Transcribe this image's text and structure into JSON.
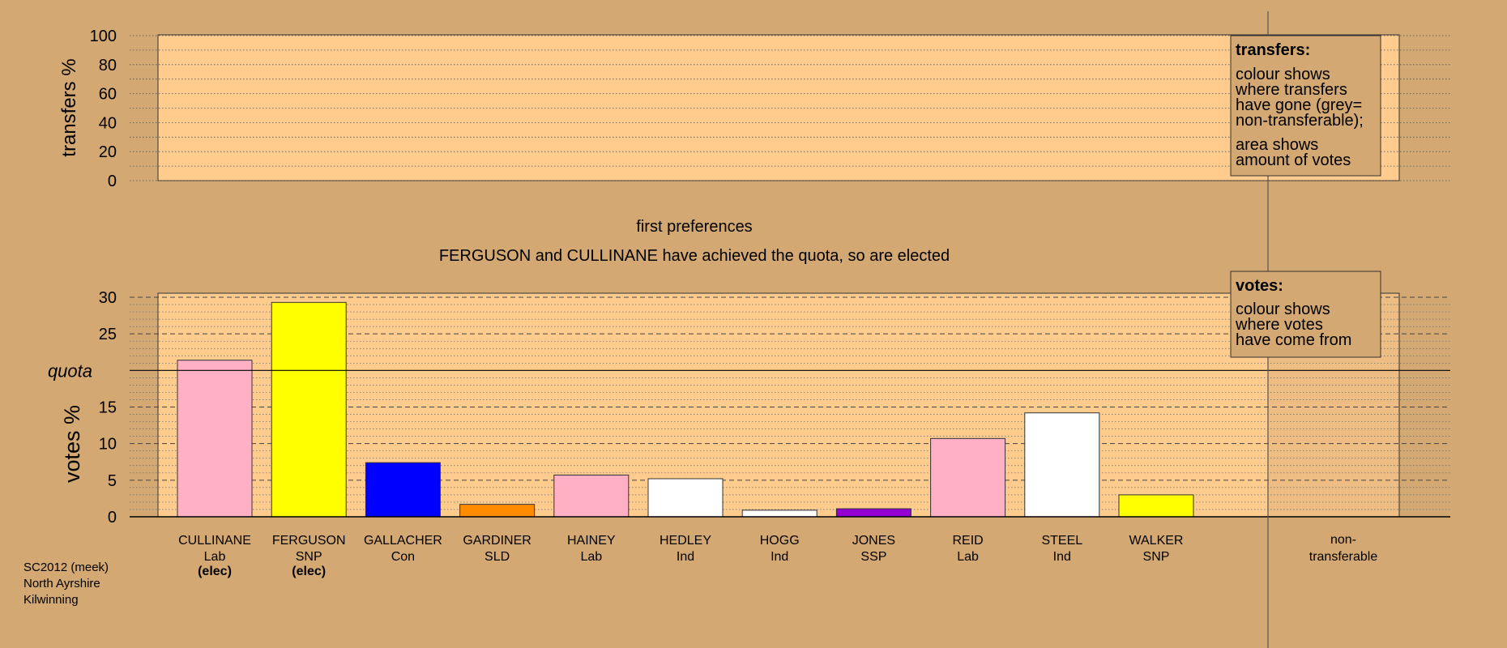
{
  "colors": {
    "background": "#d4a872",
    "plot_bg": "#ffcc8e",
    "party_Lab": "#ffb0c4",
    "party_SNP": "#ffff00",
    "party_Con": "#0000ff",
    "party_SLD": "#ff8c00",
    "party_Ind": "#ffffff",
    "party_SSP": "#9400d3"
  },
  "chart_data": [
    {
      "type": "bar",
      "title": "",
      "ylabel": "transfers %",
      "ylim": [
        0,
        100
      ],
      "yticks": [
        "0",
        "20",
        "40",
        "60",
        "80",
        "100"
      ],
      "grid": true,
      "values": []
    },
    {
      "type": "bar",
      "title": "first preferences",
      "subtitle": "FERGUSON and CULLINANE have achieved the quota, so are elected",
      "ylabel": "votes %",
      "ylim": [
        0,
        30
      ],
      "yticks": [
        "0",
        "5",
        "10",
        "15",
        "20",
        "25",
        "30"
      ],
      "grid": true,
      "quota": 20,
      "quota_label": "quota",
      "categories": [
        "CULLINANE",
        "FERGUSON",
        "GALLACHER",
        "GARDINER",
        "HAINEY",
        "HEDLEY",
        "HOGG",
        "JONES",
        "REID",
        "STEEL",
        "WALKER"
      ],
      "parties": [
        "Lab",
        "SNP",
        "Con",
        "SLD",
        "Lab",
        "Ind",
        "Ind",
        "SSP",
        "Lab",
        "Ind",
        "SNP"
      ],
      "status": [
        "(elec)",
        "(elec)",
        "",
        "",
        "",
        "",
        "",
        "",
        "",
        "",
        ""
      ],
      "values": [
        21.4,
        29.3,
        7.4,
        1.7,
        5.7,
        5.2,
        0.9,
        1.1,
        10.7,
        14.2,
        3.0
      ],
      "nontransferable_label_1": "non-",
      "nontransferable_label_2": "transferable"
    }
  ],
  "legend_transfers": {
    "title": "transfers:",
    "lines": [
      "colour shows",
      "where transfers",
      "have gone (grey=",
      "non-transferable);"
    ],
    "lines2": [
      "area shows",
      "amount of votes"
    ]
  },
  "legend_votes": {
    "title": "votes:",
    "lines": [
      "colour shows",
      "where votes",
      "have come from"
    ]
  },
  "footer": {
    "line1": "SC2012 (meek)",
    "line2": "North Ayrshire",
    "line3": "Kilwinning"
  }
}
